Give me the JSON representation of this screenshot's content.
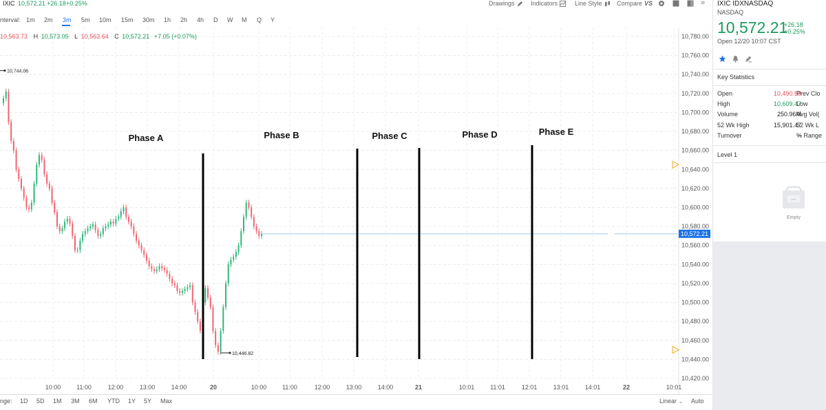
{
  "header": {
    "symbol": "IXIC",
    "price": "10,572.21",
    "change": "+26.18",
    "change_pct": "+0.25%"
  },
  "toolbar": {
    "drawings": "Drawings",
    "indicators": "Indicators",
    "line_style": "Line Style",
    "compare": "Compare",
    "compare_suffix": "VS"
  },
  "intervals": {
    "label": "nterval:",
    "items": [
      "1m",
      "2m",
      "3m",
      "5m",
      "10m",
      "15m",
      "30m",
      "1h",
      "2h",
      "4h",
      "D",
      "W",
      "M",
      "Q",
      "Y"
    ],
    "active": "3m"
  },
  "ohlc": {
    "o": "10,563.73",
    "h_label": "H",
    "h": "10,573.05",
    "l_label": "L",
    "l": "10,563.64",
    "c_label": "C",
    "c": "10,572.21",
    "chg": "+7.05 (+0.07%)"
  },
  "chart_data": {
    "type": "candlestick",
    "y_ticks": [
      "10,780.00",
      "10,760.00",
      "10,740.00",
      "10,720.00",
      "10,700.00",
      "10,680.00",
      "10,660.00",
      "10,640.00",
      "10,620.00",
      "10,600.00",
      "10,580.00",
      "10,560.00",
      "10,540.00",
      "10,520.00",
      "10,500.00",
      "10,480.00",
      "10,460.00",
      "10,440.00",
      "10,420.00"
    ],
    "ylim": [
      10420,
      10780
    ],
    "x_ticks": [
      "10:00",
      "11:00",
      "12:00",
      "13:00",
      "14:00",
      "20",
      "10:00",
      "11:00",
      "12:00",
      "13:00",
      "14:00",
      "21",
      "10:01",
      "11:01",
      "12:01",
      "13:01",
      "14:01",
      "22",
      "10:01"
    ],
    "last_price_label": "10,572.21",
    "last_price": 10572.21,
    "high_marker": {
      "label": "10,744.06",
      "value": 10744.06
    },
    "low_marker": {
      "label": "10,446.82",
      "value": 10446.82
    },
    "annotations": [
      "Phase A",
      "Phase B",
      "Phase C",
      "Phase D",
      "Phase E"
    ],
    "closes": [
      10715,
      10722,
      10690,
      10670,
      10660,
      10640,
      10630,
      10620,
      10610,
      10600,
      10598,
      10605,
      10625,
      10645,
      10655,
      10650,
      10635,
      10625,
      10620,
      10605,
      10595,
      10580,
      10575,
      10578,
      10585,
      10588,
      10583,
      10570,
      10555,
      10555,
      10565,
      10572,
      10575,
      10578,
      10580,
      10582,
      10576,
      10570,
      10572,
      10578,
      10580,
      10582,
      10585,
      10583,
      10588,
      10590,
      10596,
      10600,
      10590,
      10585,
      10580,
      10572,
      10565,
      10560,
      10555,
      10550,
      10544,
      10538,
      10535,
      10533,
      10535,
      10538,
      10536,
      10534,
      10530,
      10525,
      10520,
      10518,
      10512,
      10510,
      10512,
      10514,
      10516,
      10518,
      10500,
      10490,
      10480,
      10470,
      10500,
      10515,
      10505,
      10495,
      10470,
      10455,
      10448,
      10470,
      10495,
      10520,
      10540,
      10545,
      10548,
      10553,
      10560,
      10575,
      10590,
      10605,
      10600,
      10590,
      10580,
      10575,
      10570,
      10572
    ]
  },
  "ranges": {
    "label": "nge:",
    "items": [
      "1D",
      "5D",
      "1M",
      "3M",
      "6M",
      "YTD",
      "1Y",
      "5Y",
      "Max"
    ],
    "scale": "Linear",
    "auto": "Auto"
  },
  "panel": {
    "symbol_line": "IXIC IDXNASDAQ",
    "exchange": "NASDAQ",
    "price": "10,572.21",
    "change": "+26.18",
    "change_pct": "+0.25%",
    "open_time": "Open 12/20 10:07 CST",
    "key_stats_title": "Key Statistics",
    "stats": [
      {
        "label": "Open",
        "value": "10,490.89",
        "color": "#e0505a",
        "label2": "Prev Clo"
      },
      {
        "label": "High",
        "value": "10,609.47",
        "color": "#1a9b5b",
        "label2": "Low"
      },
      {
        "label": "Volume",
        "value": "250.96M",
        "color": "#222222",
        "label2": "Avg Vol("
      },
      {
        "label": "52 Wk High",
        "value": "15,901.47",
        "color": "#222222",
        "label2": "52 Wk L"
      },
      {
        "label": "Turnover",
        "value": "--",
        "color": "#222222",
        "label2": "% Range"
      }
    ],
    "level1_title": "Level 1",
    "empty_text": "Empty"
  }
}
